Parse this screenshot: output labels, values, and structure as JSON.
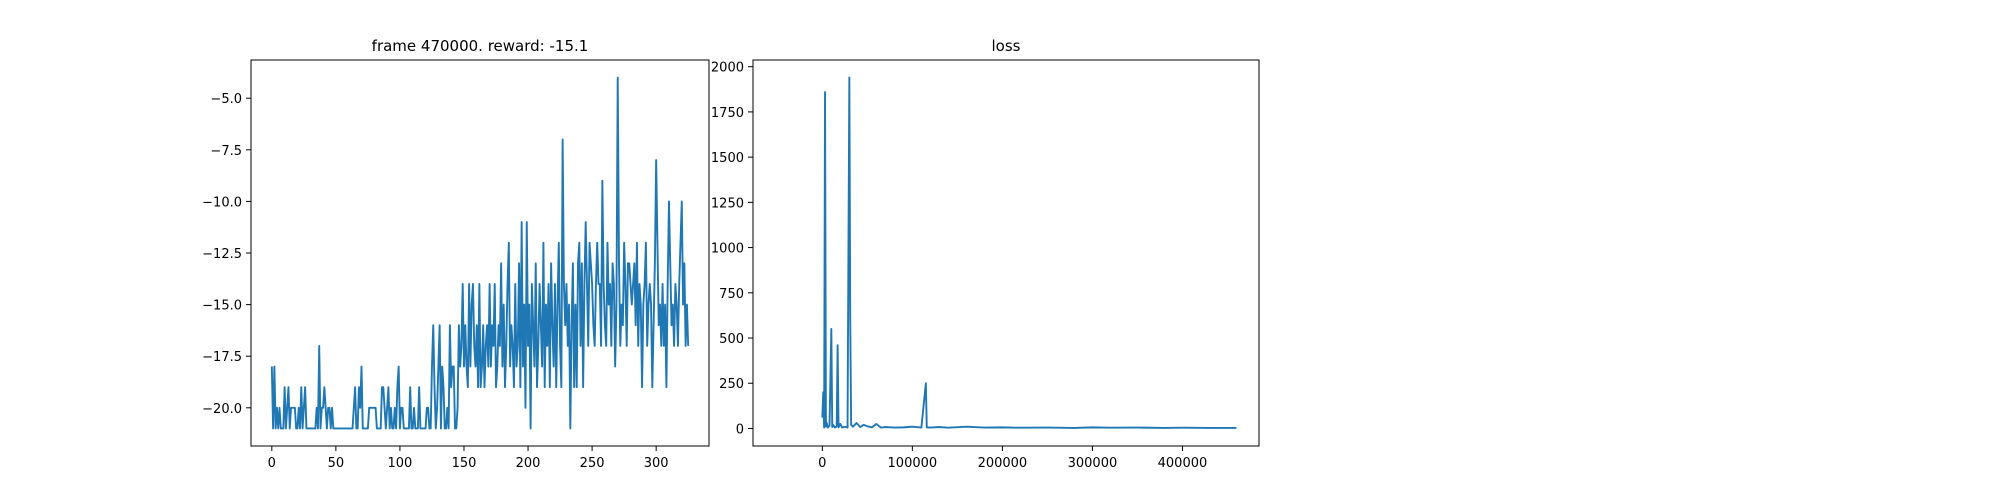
{
  "chart_data": [
    {
      "type": "line",
      "title": "frame 470000. reward: -15.1",
      "color": "#1f77b4",
      "x": [
        0,
        1,
        2,
        3,
        4,
        5,
        6,
        7,
        8,
        9,
        10,
        11,
        12,
        13,
        14,
        15,
        16,
        17,
        18,
        19,
        20,
        21,
        22,
        23,
        24,
        25,
        26,
        27,
        28,
        29,
        30,
        31,
        32,
        33,
        34,
        35,
        36,
        37,
        38,
        39,
        40,
        41,
        42,
        43,
        44,
        45,
        46,
        47,
        48,
        49,
        50,
        51,
        52,
        53,
        54,
        55,
        56,
        57,
        58,
        59,
        60,
        61,
        62,
        63,
        64,
        65,
        66,
        67,
        68,
        69,
        70,
        71,
        72,
        73,
        74,
        75,
        76,
        77,
        78,
        79,
        80,
        81,
        82,
        83,
        84,
        85,
        86,
        87,
        88,
        89,
        90,
        91,
        92,
        93,
        94,
        95,
        96,
        97,
        98,
        99,
        100,
        101,
        102,
        103,
        104,
        105,
        106,
        107,
        108,
        109,
        110,
        111,
        112,
        113,
        114,
        115,
        116,
        117,
        118,
        119,
        120,
        121,
        122,
        123,
        124,
        125,
        126,
        127,
        128,
        129,
        130,
        131,
        132,
        133,
        134,
        135,
        136,
        137,
        138,
        139,
        140,
        141,
        142,
        143,
        144,
        145,
        146,
        147,
        148,
        149,
        150,
        151,
        152,
        153,
        154,
        155,
        156,
        157,
        158,
        159,
        160,
        161,
        162,
        163,
        164,
        165,
        166,
        167,
        168,
        169,
        170,
        171,
        172,
        173,
        174,
        175,
        176,
        177,
        178,
        179,
        180,
        181,
        182,
        183,
        184,
        185,
        186,
        187,
        188,
        189,
        190,
        191,
        192,
        193,
        194,
        195,
        196,
        197,
        198,
        199,
        200,
        201,
        202,
        203,
        204,
        205,
        206,
        207,
        208,
        209,
        210,
        211,
        212,
        213,
        214,
        215,
        216,
        217,
        218,
        219,
        220,
        221,
        222,
        223,
        224,
        225,
        226,
        227,
        228,
        229,
        230,
        231,
        232,
        233,
        234,
        235,
        236,
        237,
        238,
        239,
        240,
        241,
        242,
        243,
        244,
        245,
        246,
        247,
        248,
        249,
        250,
        251,
        252,
        253,
        254,
        255,
        256,
        257,
        258,
        259,
        260,
        261,
        262,
        263,
        264,
        265,
        266,
        267,
        268,
        269,
        270,
        271,
        272,
        273,
        274,
        275,
        276,
        277,
        278,
        279,
        280,
        281,
        282,
        283,
        284,
        285,
        286,
        287,
        288,
        289,
        290,
        291,
        292,
        293,
        294,
        295,
        296,
        297,
        298,
        299,
        300,
        301,
        302,
        303,
        304,
        305,
        306,
        307,
        308,
        309,
        310,
        311,
        312,
        313,
        314,
        315,
        316,
        317,
        318,
        319,
        320,
        321,
        322,
        323,
        324,
        325
      ],
      "values": [
        -18,
        -21,
        -18,
        -21,
        -20,
        -21,
        -20,
        -21,
        -21,
        -21,
        -19,
        -21,
        -20,
        -19,
        -21,
        -20,
        -20,
        -20,
        -20,
        -21,
        -21,
        -20,
        -21,
        -19,
        -21,
        -20,
        -19,
        -21,
        -21,
        -21,
        -21,
        -21,
        -21,
        -21,
        -21,
        -20,
        -21,
        -17,
        -21,
        -20,
        -20,
        -19,
        -20,
        -21,
        -20,
        -20,
        -21,
        -20,
        -21,
        -21,
        -21,
        -21,
        -21,
        -21,
        -21,
        -21,
        -21,
        -21,
        -21,
        -21,
        -21,
        -21,
        -21,
        -21,
        -20,
        -19,
        -21,
        -21,
        -19,
        -20,
        -18,
        -21,
        -21,
        -21,
        -21,
        -21,
        -20,
        -20,
        -20,
        -20,
        -20,
        -20,
        -21,
        -21,
        -21,
        -21,
        -19,
        -19,
        -20,
        -21,
        -20,
        -19,
        -21,
        -20,
        -21,
        -21,
        -20,
        -21,
        -19,
        -18,
        -21,
        -20,
        -20,
        -21,
        -21,
        -21,
        -21,
        -21,
        -19,
        -21,
        -21,
        -20,
        -21,
        -21,
        -21,
        -19,
        -21,
        -21,
        -21,
        -21,
        -21,
        -20,
        -20,
        -21,
        -21,
        -18,
        -16,
        -19,
        -21,
        -20,
        -18,
        -16,
        -21,
        -18,
        -19,
        -21,
        -21,
        -20,
        -21,
        -16,
        -19,
        -18,
        -18,
        -21,
        -21,
        -20,
        -16,
        -18,
        -17,
        -14,
        -18,
        -16,
        -18,
        -19,
        -14,
        -18,
        -15,
        -14,
        -17,
        -18,
        -16,
        -19,
        -14,
        -19,
        -18,
        -16,
        -19,
        -17,
        -16,
        -18,
        -14,
        -18,
        -16,
        -17,
        -14,
        -19,
        -18,
        -16,
        -17,
        -13,
        -18,
        -15,
        -19,
        -17,
        -14,
        -12,
        -18,
        -16,
        -17,
        -19,
        -14,
        -18,
        -17,
        -13,
        -19,
        -11,
        -18,
        -15,
        -20,
        -11,
        -17,
        -15,
        -21,
        -14,
        -16,
        -18,
        -13,
        -19,
        -17,
        -14,
        -16,
        -18,
        -12,
        -19,
        -15,
        -17,
        -14,
        -19,
        -13,
        -16,
        -18,
        -14,
        -19,
        -15,
        -12,
        -17,
        -19,
        -7,
        -14,
        -16,
        -14,
        -17,
        -15,
        -21,
        -16,
        -13,
        -19,
        -15,
        -19,
        -13,
        -12,
        -17,
        -13,
        -19,
        -14,
        -11,
        -14,
        -17,
        -12,
        -13,
        -14,
        -16,
        -17,
        -14,
        -12,
        -14,
        -14,
        -17,
        -9,
        -14,
        -16,
        -17,
        -12,
        -15,
        -14,
        -17,
        -13,
        -14,
        -18,
        -15,
        -4,
        -13,
        -17,
        -15,
        -16,
        -12,
        -14,
        -17,
        -13,
        -13,
        -14,
        -15,
        -14,
        -13,
        -16,
        -12,
        -17,
        -14,
        -15,
        -19,
        -15,
        -14,
        -12,
        -17,
        -15,
        -14,
        -15,
        -19,
        -16,
        -13,
        -8,
        -12,
        -16,
        -15,
        -17,
        -14,
        -17,
        -15,
        -19,
        -14,
        -10,
        -13,
        -16,
        -15,
        -17,
        -14,
        -15,
        -17,
        -14,
        -12,
        -10,
        -15,
        -13,
        -17,
        -15,
        -17
      ],
      "xlim": [
        -16.25,
        341.25
      ],
      "xticks": [
        0,
        50,
        100,
        150,
        200,
        250,
        300
      ],
      "ylim": [
        -21.85,
        -3.15
      ],
      "yticks": [
        {
          "value": -20,
          "label": "−20.0"
        },
        {
          "value": -17.5,
          "label": "−17.5"
        },
        {
          "value": -15,
          "label": "−15.0"
        },
        {
          "value": -12.5,
          "label": "−12.5"
        },
        {
          "value": -10,
          "label": "−10.0"
        },
        {
          "value": -7.5,
          "label": "−7.5"
        },
        {
          "value": -5,
          "label": "−5.0"
        }
      ]
    },
    {
      "type": "line",
      "title": "loss",
      "color": "#1f77b4",
      "x": [
        0,
        1000,
        2000,
        3000,
        4000,
        5000,
        6000,
        8000,
        10000,
        11000,
        12000,
        14000,
        16000,
        17000,
        18000,
        20000,
        22000,
        25000,
        28000,
        30000,
        31000,
        32000,
        34000,
        38000,
        42000,
        46000,
        50000,
        55000,
        60000,
        65000,
        70000,
        80000,
        90000,
        100000,
        110000,
        115000,
        116000,
        120000,
        130000,
        140000,
        160000,
        180000,
        200000,
        220000,
        250000,
        280000,
        300000,
        320000,
        350000,
        380000,
        400000,
        430000,
        460000
      ],
      "values": [
        60,
        200,
        5,
        1860,
        10,
        30,
        5,
        15,
        550,
        8,
        20,
        5,
        12,
        460,
        6,
        25,
        5,
        10,
        5,
        1940,
        600,
        20,
        10,
        30,
        8,
        20,
        12,
        6,
        25,
        5,
        8,
        5,
        6,
        10,
        5,
        250,
        6,
        5,
        8,
        4,
        10,
        5,
        6,
        4,
        5,
        3,
        6,
        4,
        5,
        3,
        4,
        3,
        3
      ],
      "xlim": [
        -77000,
        485000
      ],
      "xticks": [
        0,
        100000,
        200000,
        300000,
        400000
      ],
      "ylim": [
        -97,
        2037
      ],
      "yticks": [
        0,
        250,
        500,
        750,
        1000,
        1250,
        1500,
        1750,
        2000
      ]
    }
  ]
}
